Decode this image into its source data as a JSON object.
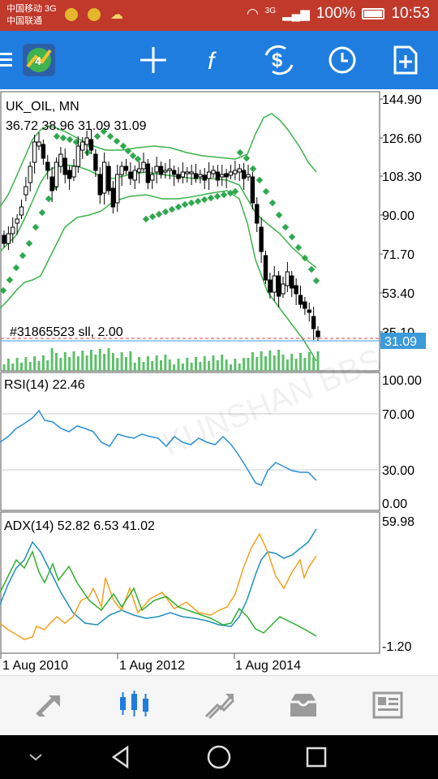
{
  "status_bar": {
    "carrier1": "中国移动 3G",
    "carrier2": "中国联通",
    "network": "3G",
    "battery": "100%",
    "time": "10:53"
  },
  "toolbar": {
    "icons": [
      "menu-icon",
      "app-logo-icon",
      "crosshair-icon",
      "indicators-icon",
      "symbols-icon",
      "timeframe-icon",
      "new-order-icon"
    ]
  },
  "chart": {
    "symbol_label": "UK_OIL, MN",
    "ohlc_label": "36.72 38.96 31.09 31.09",
    "order_label": "#31865523 sll, 2.00",
    "price_ticks": [
      "144.90",
      "126.60",
      "108.30",
      "90.00",
      "71.70",
      "53.40",
      "35.10"
    ],
    "current_price": "31.09",
    "rsi_label": "RSI(14) 22.46",
    "rsi_ticks": [
      "100.00",
      "70.00",
      "30.00",
      "0.00"
    ],
    "adx_label": "ADX(14) 52.82 6.53 41.02",
    "adx_ticks": [
      "59.98",
      "-1.20"
    ],
    "time_labels": [
      "1 Aug 2010",
      "1 Aug 2012",
      "1 Aug 2014"
    ],
    "colors": {
      "price_line": "#3b9ad9",
      "bollinger": "#3cb34a",
      "sar": "#2fa84f",
      "rsi": "#2a8fd6",
      "adx_main": "#1f8fb8",
      "adx_plus": "#f0a020",
      "adx_minus": "#2fae2f",
      "order_line": "#d84040"
    }
  },
  "bottom_nav": {
    "items": [
      "quotes-icon",
      "chart-icon",
      "trade-icon",
      "history-icon",
      "news-icon"
    ],
    "active": "chart-icon"
  }
}
